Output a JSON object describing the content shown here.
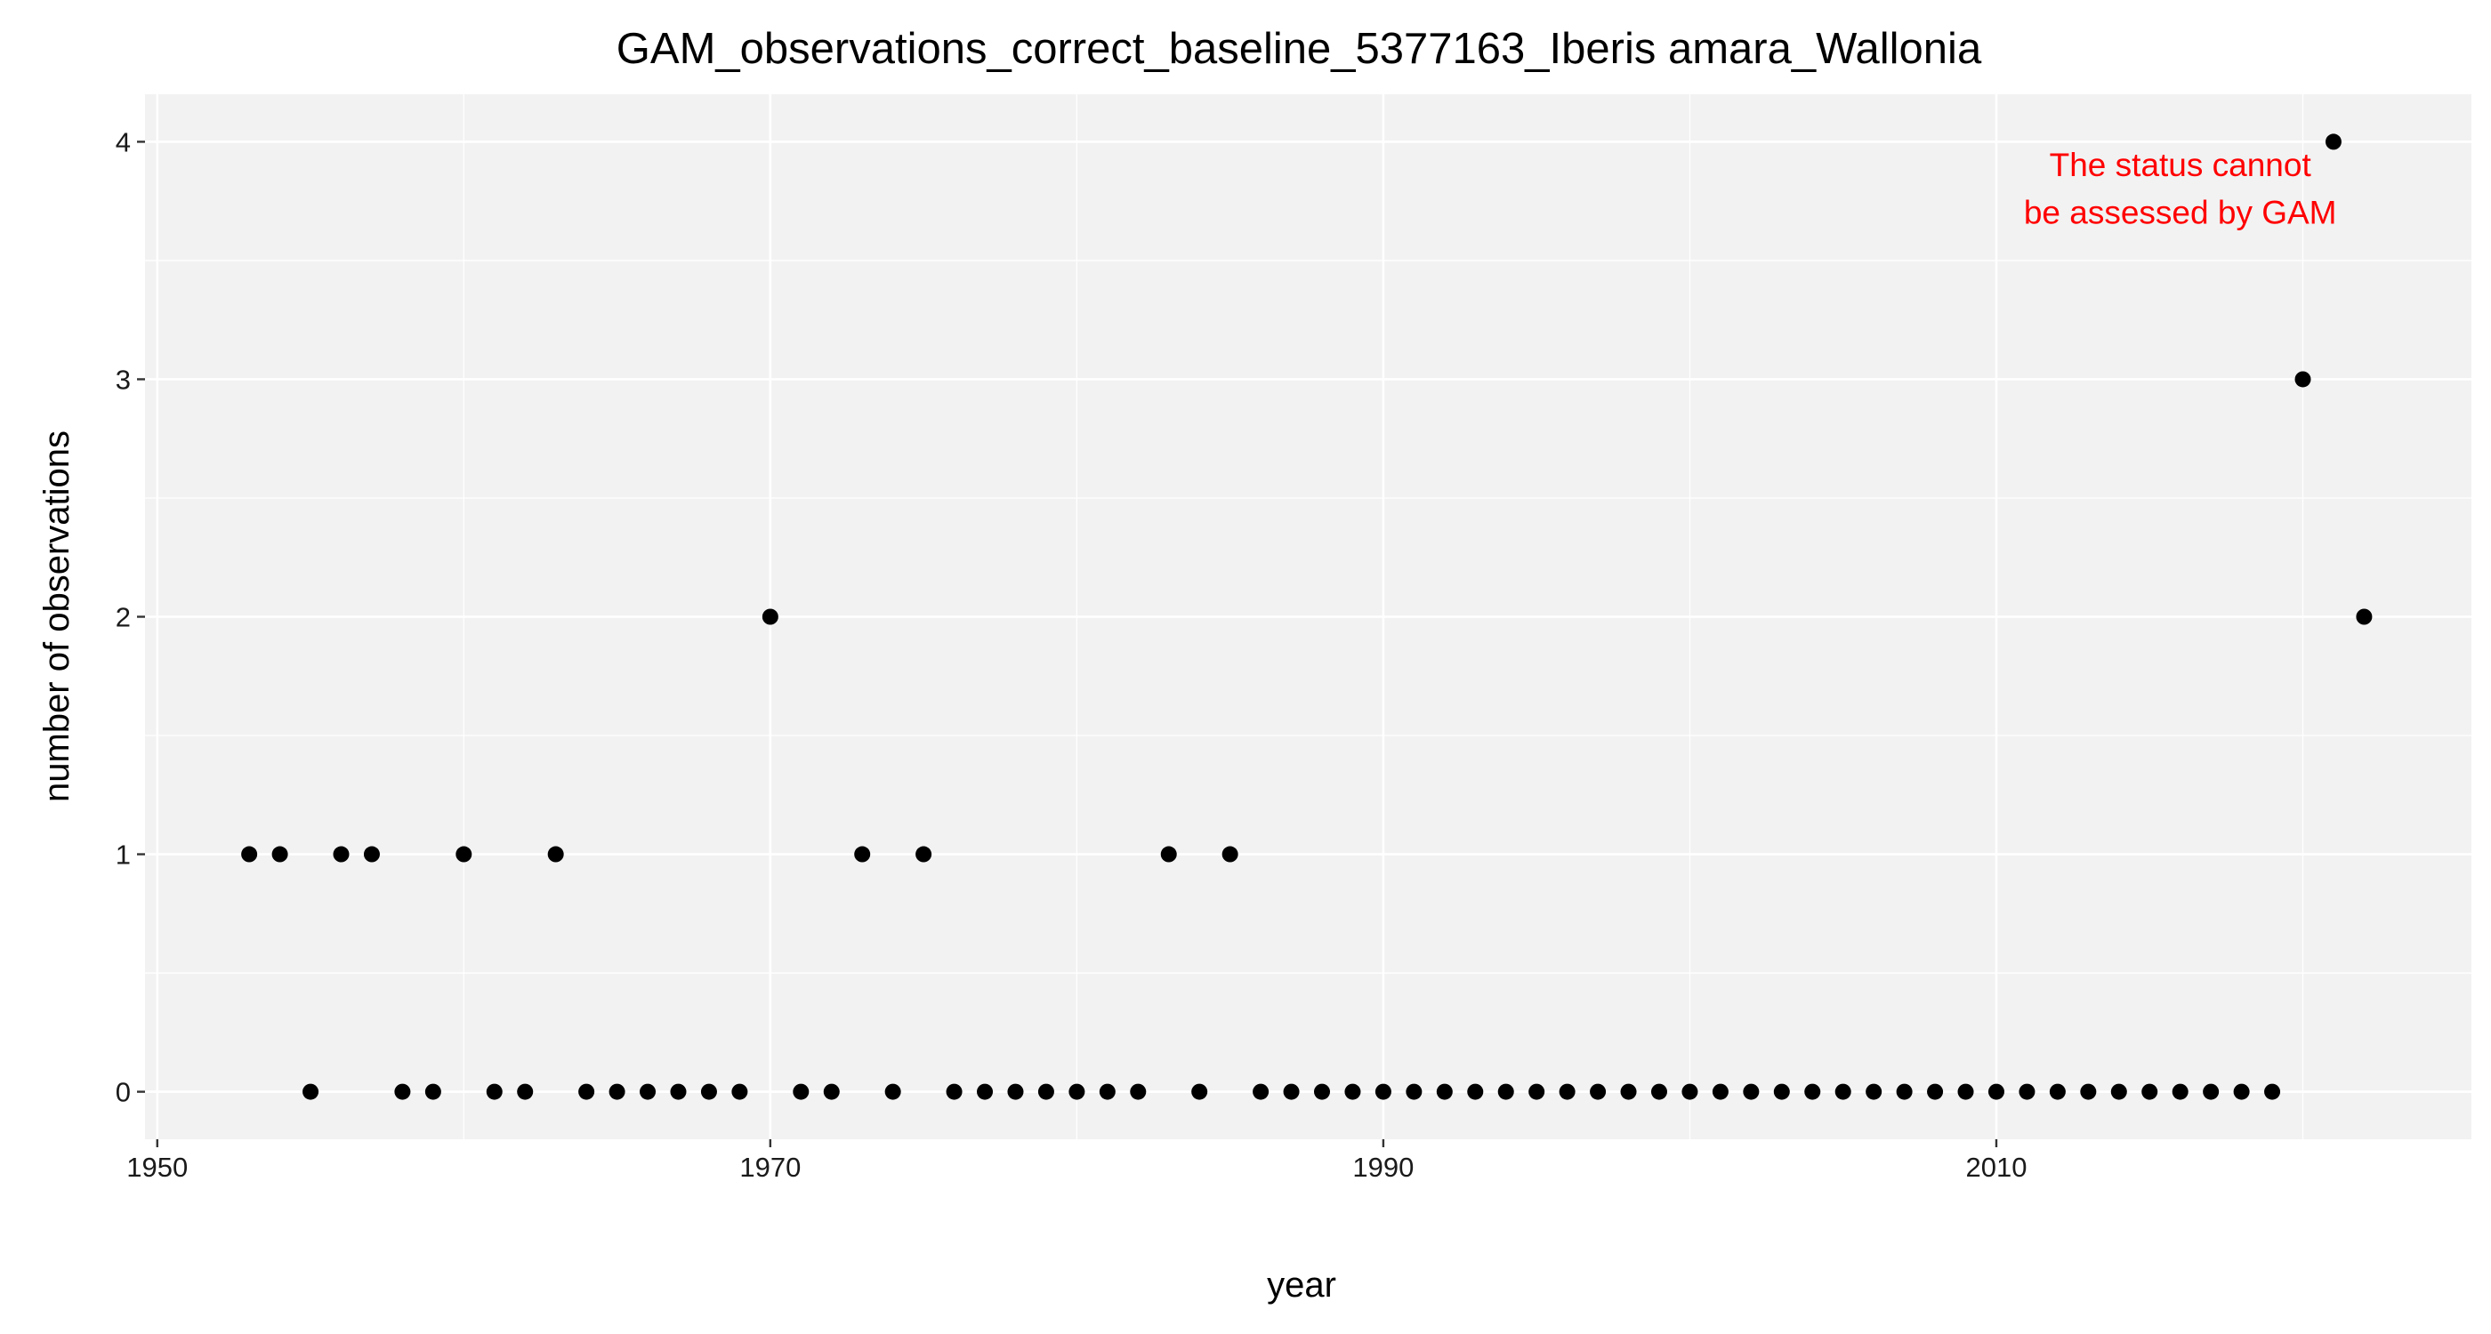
{
  "chart_data": {
    "type": "scatter",
    "title": "GAM_observations_correct_baseline_5377163_Iberis amara_Wallonia",
    "xlabel": "year",
    "ylabel": "number of observations",
    "xlim": [
      1949.6,
      2025.5
    ],
    "ylim": [
      -0.2,
      4.2
    ],
    "x_ticks": [
      1950,
      1970,
      1990,
      2010
    ],
    "x_minor_ticks": [
      1960,
      1980,
      2000,
      2020
    ],
    "y_ticks": [
      0,
      1,
      2,
      3,
      4
    ],
    "y_minor_ticks": [
      0.5,
      1.5,
      2.5,
      3.5
    ],
    "grid": true,
    "legend": "none",
    "panel_color": "#f2f2f2",
    "point_color": "#000000",
    "annotation": {
      "lines": [
        "The status cannot",
        "be assessed by GAM"
      ],
      "color": "#ff0000",
      "x": 2016,
      "y_lines": [
        3.9,
        3.7
      ]
    },
    "series": [
      {
        "x": [
          1953,
          1954,
          1955,
          1956,
          1957,
          1958,
          1959,
          1960,
          1961,
          1962,
          1963,
          1964,
          1965,
          1966,
          1967,
          1968,
          1969,
          1970,
          1971,
          1972,
          1973,
          1974,
          1975,
          1976,
          1977,
          1978,
          1979,
          1980,
          1981,
          1982,
          1983,
          1984,
          1985,
          1986,
          1987,
          1988,
          1989,
          1990,
          1991,
          1992,
          1993,
          1994,
          1995,
          1996,
          1997,
          1998,
          1999,
          2000,
          2001,
          2002,
          2003,
          2004,
          2005,
          2006,
          2007,
          2008,
          2009,
          2010,
          2011,
          2012,
          2013,
          2014,
          2015,
          2016,
          2017,
          2018,
          2019,
          2020,
          2021,
          2022
        ],
        "y": [
          1,
          1,
          0,
          1,
          1,
          0,
          0,
          1,
          0,
          0,
          1,
          0,
          0,
          0,
          0,
          0,
          0,
          2,
          0,
          0,
          1,
          0,
          1,
          0,
          0,
          0,
          0,
          0,
          0,
          0,
          1,
          0,
          1,
          0,
          0,
          0,
          0,
          0,
          0,
          0,
          0,
          0,
          0,
          0,
          0,
          0,
          0,
          0,
          0,
          0,
          0,
          0,
          0,
          0,
          0,
          0,
          0,
          0,
          0,
          0,
          0,
          0,
          0,
          0,
          0,
          0,
          0,
          3,
          4,
          2
        ]
      }
    ]
  }
}
